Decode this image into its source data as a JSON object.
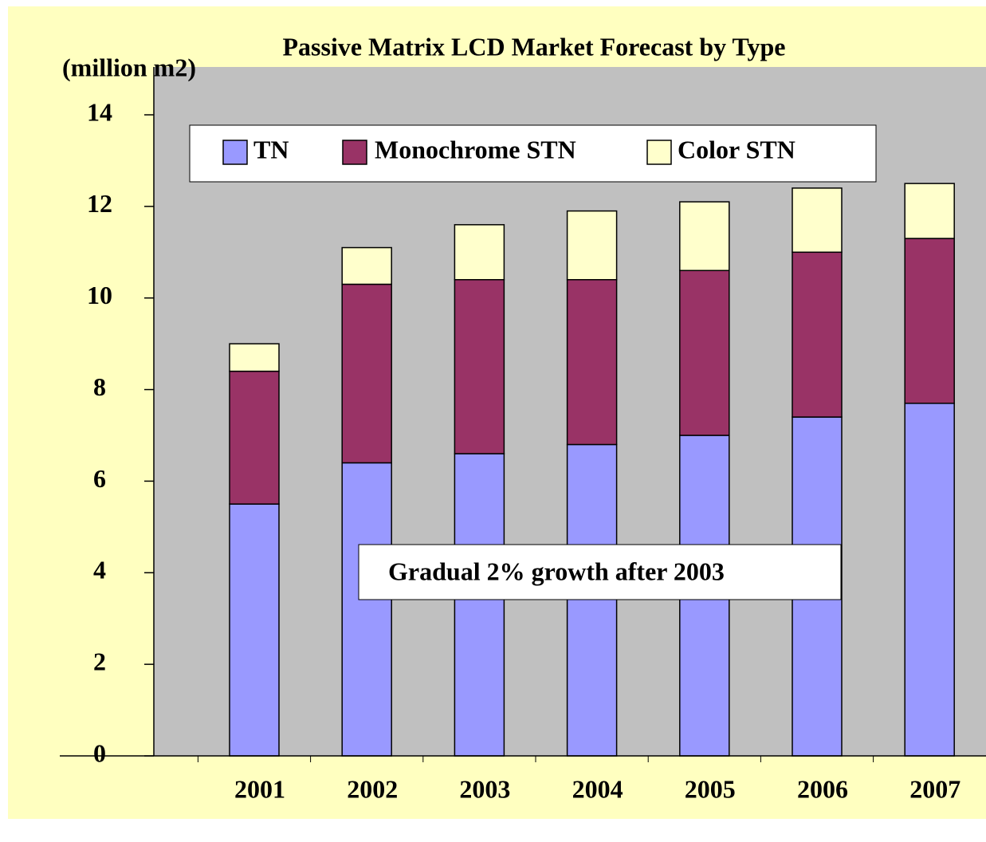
{
  "chart_data": {
    "type": "stacked_bar",
    "title": "Passive Matrix LCD Market Forecast by Type",
    "y_axis_label": "(million m2)",
    "annotation": "Gradual 2% growth after 2003",
    "categories": [
      "2001",
      "2002",
      "2003",
      "2004",
      "2005",
      "2006",
      "2007"
    ],
    "series": [
      {
        "name": "TN",
        "color": "#9999ff",
        "values": [
          5.5,
          6.4,
          6.6,
          6.8,
          7.0,
          7.4,
          7.7
        ]
      },
      {
        "name": "Monochrome STN",
        "color": "#993366",
        "values": [
          2.9,
          3.9,
          3.8,
          3.6,
          3.6,
          3.6,
          3.6
        ]
      },
      {
        "name": "Color STN",
        "color": "#ffffcc",
        "values": [
          0.6,
          0.8,
          1.2,
          1.5,
          1.5,
          1.4,
          1.2
        ]
      }
    ],
    "ylim": [
      0,
      14
    ],
    "yticks": [
      0,
      2,
      4,
      6,
      8,
      10,
      12,
      14
    ],
    "grid": false,
    "legend": "top"
  }
}
